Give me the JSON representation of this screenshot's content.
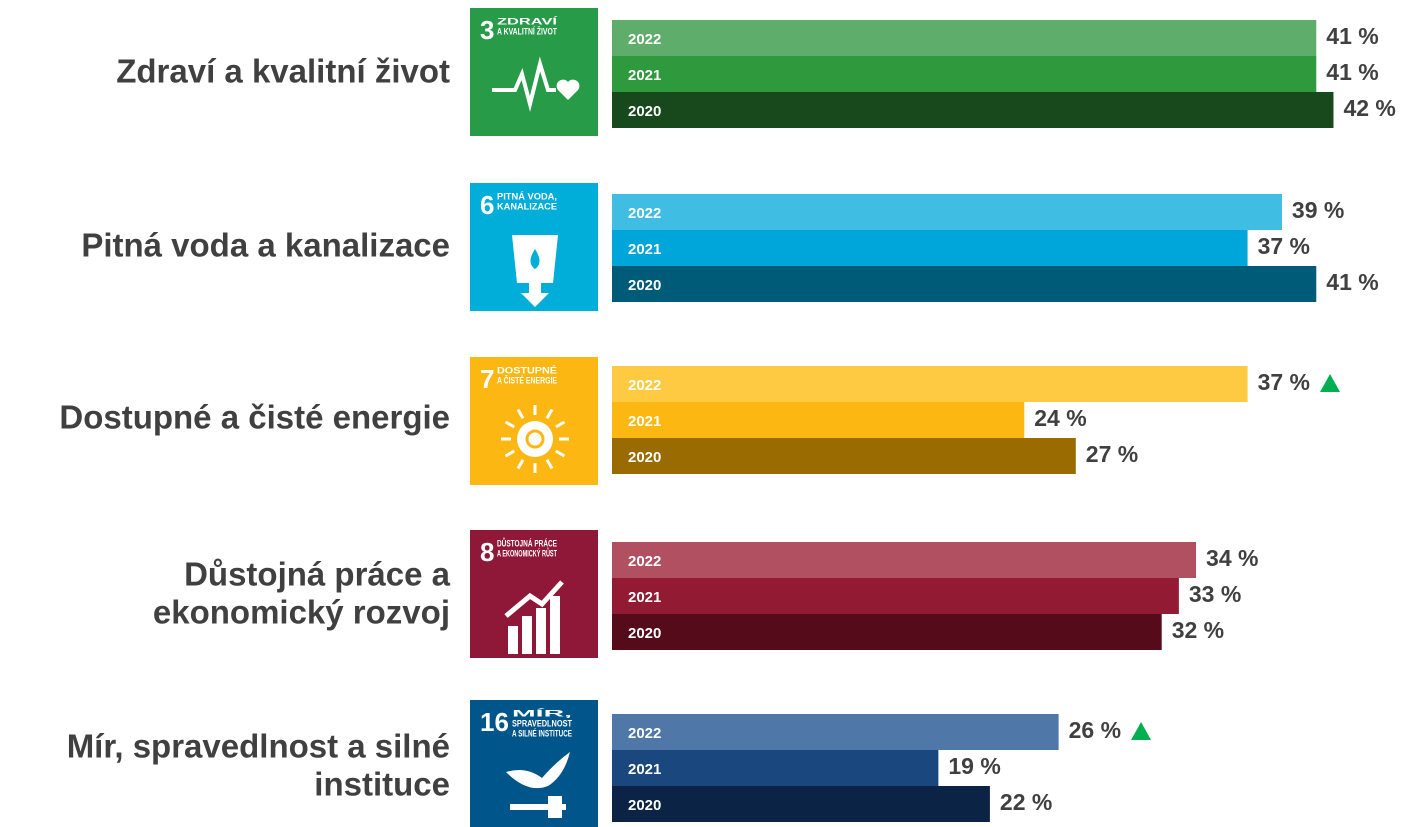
{
  "chart_data": {
    "type": "bar",
    "orientation": "horizontal",
    "xlim": [
      0,
      45
    ],
    "groups": [
      {
        "label_lines": [
          "Zdraví a kvalitní život"
        ],
        "icon": {
          "number": "3",
          "lines": [
            "ZDRAVÍ",
            "A KVALITNÍ ŽIVOT"
          ],
          "color": "#279b48"
        },
        "categories": [
          "2022",
          "2021",
          "2020"
        ],
        "values": [
          41,
          41,
          42
        ],
        "value_labels": [
          "41 %",
          "41 %",
          "42 %"
        ],
        "colors": [
          "#5fad6a",
          "#2e9a3d",
          "#17491c"
        ],
        "up_marker": false
      },
      {
        "label_lines": [
          "Pitná voda a kanalizace"
        ],
        "icon": {
          "number": "6",
          "lines": [
            "PITNÁ VODA,",
            "KANALIZACE"
          ],
          "color": "#00aed9"
        },
        "categories": [
          "2022",
          "2021",
          "2020"
        ],
        "values": [
          39,
          37,
          41
        ],
        "value_labels": [
          "39 %",
          "37 %",
          "41 %"
        ],
        "colors": [
          "#40bde3",
          "#00a6d9",
          "#005b78"
        ],
        "up_marker": false
      },
      {
        "label_lines": [
          "Dostupné a čisté energie"
        ],
        "icon": {
          "number": "7",
          "lines": [
            "DOSTUPNÉ",
            "A ČISTÉ ENERGIE"
          ],
          "color": "#fdb713"
        },
        "categories": [
          "2022",
          "2021",
          "2020"
        ],
        "values": [
          37,
          24,
          27
        ],
        "value_labels": [
          "37 %",
          "24 %",
          "27 %"
        ],
        "colors": [
          "#fdca42",
          "#fdb713",
          "#9a6b00"
        ],
        "up_marker": true
      },
      {
        "label_lines": [
          "Důstojná práce a",
          "ekonomický rozvoj"
        ],
        "icon": {
          "number": "8",
          "lines": [
            "DŮSTOJNÁ PRÁCE",
            "A EKONOMICKÝ RŮST"
          ],
          "color": "#8f1838"
        },
        "categories": [
          "2022",
          "2021",
          "2020"
        ],
        "values": [
          34,
          33,
          32
        ],
        "value_labels": [
          "34 %",
          "33 %",
          "32 %"
        ],
        "colors": [
          "#b05060",
          "#921a32",
          "#560b1b"
        ],
        "up_marker": false
      },
      {
        "label_lines": [
          "Mír, spravedlnost a silné",
          "instituce"
        ],
        "icon": {
          "number": "16",
          "lines": [
            "MÍR,",
            "SPRAVEDLNOST",
            "A SILNÉ INSTITUCE"
          ],
          "color": "#00558a"
        },
        "categories": [
          "2022",
          "2021",
          "2020"
        ],
        "values": [
          26,
          19,
          22
        ],
        "value_labels": [
          "26 %",
          "19 %",
          "22 %"
        ],
        "colors": [
          "#4f77a7",
          "#1a477e",
          "#0b2344"
        ],
        "up_marker": true
      }
    ]
  }
}
